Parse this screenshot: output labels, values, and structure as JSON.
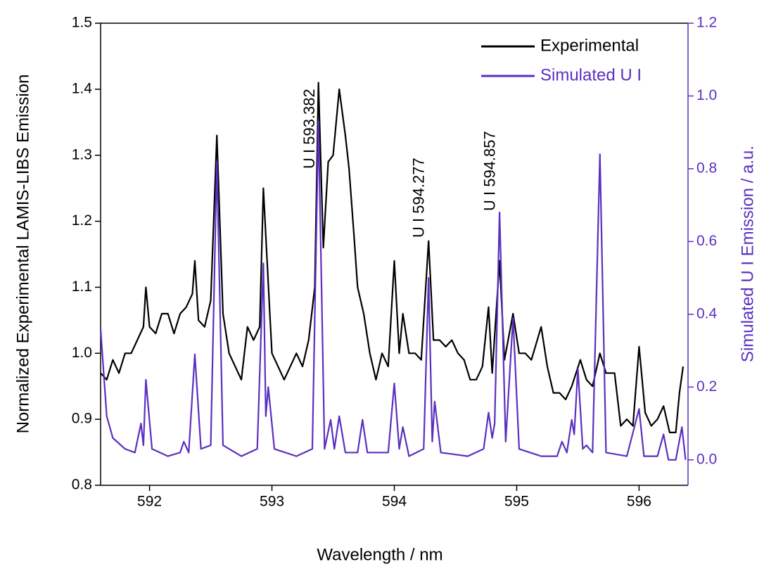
{
  "chart_data": {
    "type": "line",
    "xlabel": "Wavelength / nm",
    "ylabel": "Normalized Experimental LAMIS-LIBS Emission",
    "y2label": "Simulated U I Emission / a.u.",
    "xlim": [
      591.6,
      596.4
    ],
    "xticks": [
      592,
      593,
      594,
      595,
      596
    ],
    "ylim": [
      0.8,
      1.5
    ],
    "yticks": [
      0.8,
      0.9,
      {
        "value": 1,
        "label": "1.0"
      },
      1.1,
      1.2,
      1.3,
      1.4,
      1.5
    ],
    "y2lim": [
      -0.07,
      1.2
    ],
    "y2ticks": [
      {
        "value": 0,
        "label": "0.0"
      },
      0.2,
      0.4,
      0.6,
      0.8,
      {
        "value": 1,
        "label": "1.0"
      },
      1.2
    ],
    "y2color": "#5b2fc0",
    "legend": "upper right",
    "grid": false,
    "series": [
      {
        "name": "Experimental",
        "color": "#000000",
        "axis": "y",
        "x": [
          591.6,
          591.65,
          591.7,
          591.75,
          591.8,
          591.85,
          591.9,
          591.95,
          591.97,
          592.0,
          592.05,
          592.1,
          592.15,
          592.2,
          592.25,
          592.3,
          592.35,
          592.37,
          592.4,
          592.45,
          592.5,
          592.55,
          592.6,
          592.65,
          592.7,
          592.75,
          592.8,
          592.85,
          592.9,
          592.93,
          592.98,
          593.0,
          593.05,
          593.1,
          593.15,
          593.2,
          593.25,
          593.3,
          593.35,
          593.38,
          593.42,
          593.46,
          593.5,
          593.55,
          593.6,
          593.63,
          593.67,
          593.7,
          593.75,
          593.8,
          593.85,
          593.9,
          593.95,
          594.0,
          594.04,
          594.07,
          594.12,
          594.17,
          594.22,
          594.28,
          594.32,
          594.37,
          594.42,
          594.47,
          594.52,
          594.57,
          594.62,
          594.67,
          594.72,
          594.77,
          594.8,
          594.86,
          594.9,
          594.97,
          595.02,
          595.07,
          595.12,
          595.2,
          595.25,
          595.3,
          595.35,
          595.4,
          595.45,
          595.52,
          595.57,
          595.62,
          595.68,
          595.73,
          595.8,
          595.85,
          595.9,
          595.95,
          596.0,
          596.05,
          596.1,
          596.15,
          596.2,
          596.25,
          596.3,
          596.33,
          596.36
        ],
        "values": [
          0.97,
          0.96,
          0.99,
          0.97,
          1.0,
          1.0,
          1.02,
          1.04,
          1.1,
          1.04,
          1.03,
          1.06,
          1.06,
          1.03,
          1.06,
          1.07,
          1.09,
          1.14,
          1.05,
          1.04,
          1.08,
          1.33,
          1.06,
          1.0,
          0.98,
          0.96,
          1.04,
          1.02,
          1.04,
          1.25,
          1.07,
          1.0,
          0.98,
          0.96,
          0.98,
          1.0,
          0.98,
          1.02,
          1.1,
          1.41,
          1.16,
          1.29,
          1.3,
          1.4,
          1.33,
          1.28,
          1.18,
          1.1,
          1.06,
          1.0,
          0.96,
          1.0,
          0.98,
          1.14,
          1.0,
          1.06,
          1.0,
          1.0,
          0.99,
          1.17,
          1.02,
          1.02,
          1.01,
          1.02,
          1.0,
          0.99,
          0.96,
          0.96,
          0.98,
          1.07,
          0.97,
          1.14,
          0.99,
          1.06,
          1.0,
          1.0,
          0.99,
          1.04,
          0.98,
          0.94,
          0.94,
          0.93,
          0.95,
          0.99,
          0.96,
          0.95,
          1.0,
          0.97,
          0.97,
          0.89,
          0.9,
          0.89,
          1.01,
          0.91,
          0.89,
          0.9,
          0.92,
          0.88,
          0.88,
          0.94,
          0.98
        ]
      },
      {
        "name": "Simulated U I",
        "color": "#5b2fc0",
        "axis": "y2",
        "x": [
          591.6,
          591.65,
          591.7,
          591.8,
          591.88,
          591.93,
          591.95,
          591.97,
          592.02,
          592.15,
          592.25,
          592.28,
          592.32,
          592.37,
          592.42,
          592.5,
          592.55,
          592.6,
          592.75,
          592.88,
          592.93,
          592.95,
          592.97,
          593.02,
          593.2,
          593.33,
          593.38,
          593.43,
          593.48,
          593.51,
          593.55,
          593.6,
          593.7,
          593.74,
          593.78,
          593.95,
          594.0,
          594.04,
          594.07,
          594.12,
          594.24,
          594.28,
          594.31,
          594.33,
          594.38,
          594.6,
          594.73,
          594.77,
          594.8,
          594.82,
          594.86,
          594.91,
          594.97,
          595.02,
          595.2,
          595.33,
          595.37,
          595.41,
          595.45,
          595.47,
          595.5,
          595.54,
          595.57,
          595.62,
          595.68,
          595.73,
          595.9,
          596.0,
          596.04,
          596.15,
          596.2,
          596.24,
          596.3,
          596.35,
          596.38
        ],
        "values": [
          0.36,
          0.12,
          0.06,
          0.03,
          0.02,
          0.1,
          0.04,
          0.22,
          0.03,
          0.01,
          0.02,
          0.05,
          0.02,
          0.29,
          0.03,
          0.04,
          0.82,
          0.04,
          0.01,
          0.03,
          0.54,
          0.12,
          0.2,
          0.03,
          0.01,
          0.03,
          0.93,
          0.03,
          0.11,
          0.03,
          0.12,
          0.02,
          0.02,
          0.11,
          0.02,
          0.02,
          0.21,
          0.03,
          0.09,
          0.01,
          0.03,
          0.5,
          0.05,
          0.16,
          0.02,
          0.01,
          0.03,
          0.13,
          0.06,
          0.1,
          0.68,
          0.05,
          0.39,
          0.03,
          0.01,
          0.01,
          0.05,
          0.02,
          0.11,
          0.07,
          0.25,
          0.03,
          0.04,
          0.02,
          0.84,
          0.02,
          0.01,
          0.14,
          0.01,
          0.01,
          0.07,
          0.0,
          0.0,
          0.09,
          0.0
        ]
      }
    ],
    "annotations": [
      {
        "text": "U I 593.382",
        "x": 593.382
      },
      {
        "text": "U I 594.277",
        "x": 594.277
      },
      {
        "text": "U I 594.857",
        "x": 594.857
      }
    ]
  }
}
